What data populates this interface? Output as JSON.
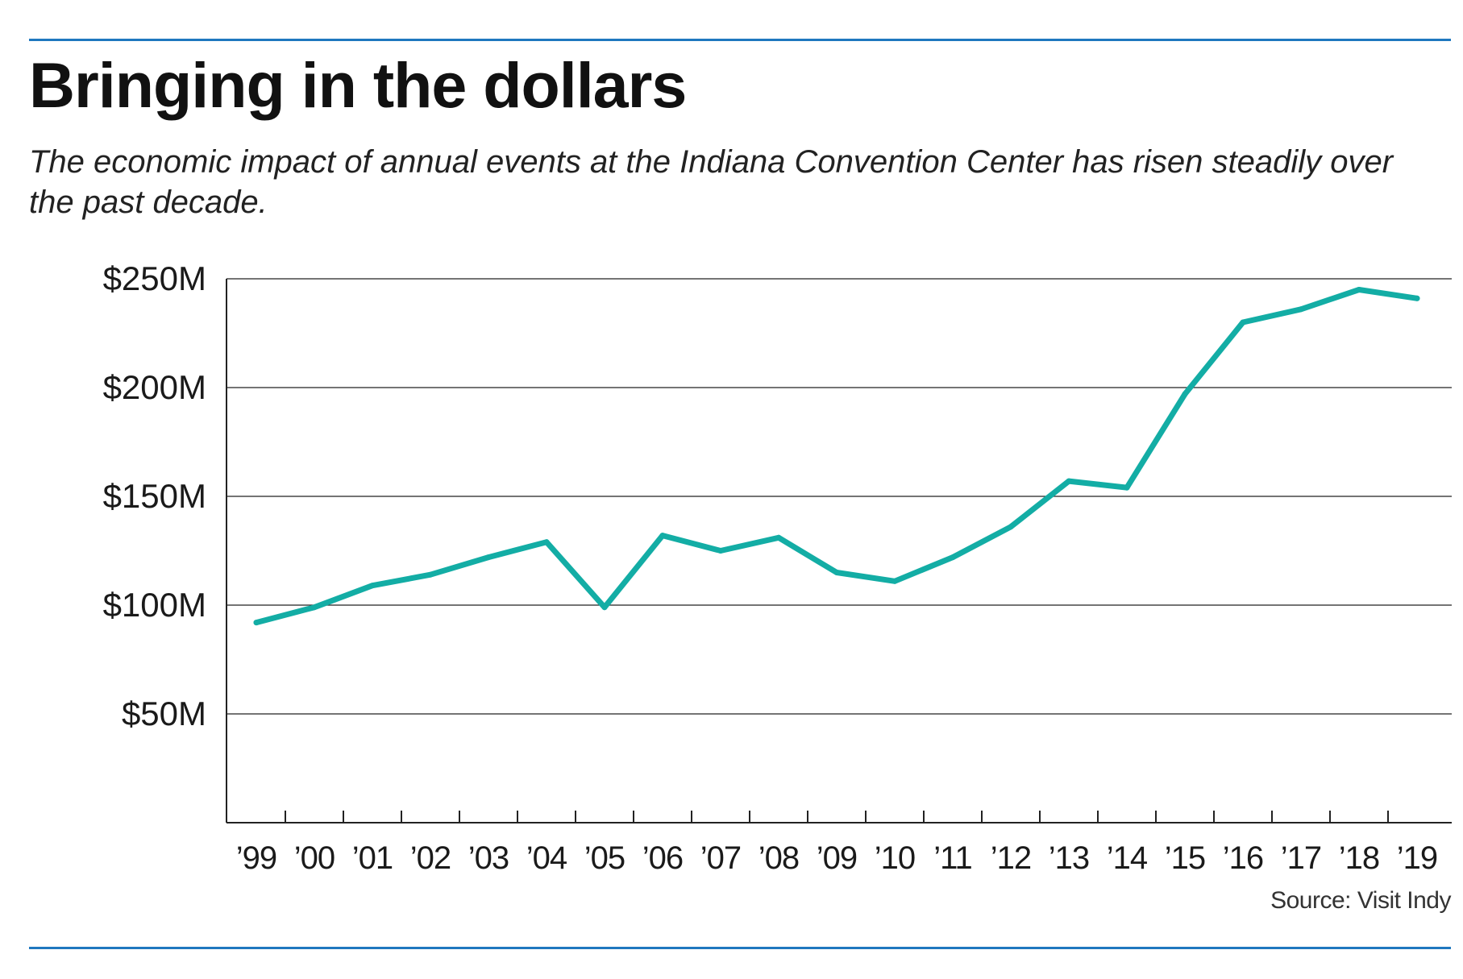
{
  "title": "Bringing in the dollars",
  "subtitle": "The economic impact of annual events at the Indiana Convention Center has risen steadily over the past decade.",
  "source": "Source: Visit Indy",
  "colors": {
    "line": "#13ada5",
    "rule": "#1f78bf",
    "grid": "#222222"
  },
  "chart_data": {
    "type": "line",
    "title": "Bringing in the dollars",
    "xlabel": "",
    "ylabel": "",
    "categories": [
      "’99",
      "’00",
      "’01",
      "’02",
      "’03",
      "’04",
      "’05",
      "’06",
      "’07",
      "’08",
      "’09",
      "’10",
      "’11",
      "’12",
      "’13",
      "’14",
      "’15",
      "’16",
      "’17",
      "’18",
      "’19"
    ],
    "series": [
      {
        "values": [
          92,
          99,
          109,
          114,
          122,
          129,
          99,
          132,
          125,
          131,
          115,
          111,
          122,
          136,
          157,
          154,
          197,
          230,
          236,
          245,
          241
        ]
      }
    ],
    "yticks": [
      50,
      100,
      150,
      200,
      250
    ],
    "ytick_labels": [
      "$50M",
      "$100M",
      "$150M",
      "$200M",
      "$250M"
    ],
    "ylim": [
      0,
      250
    ],
    "grid": true,
    "legend": "none"
  }
}
